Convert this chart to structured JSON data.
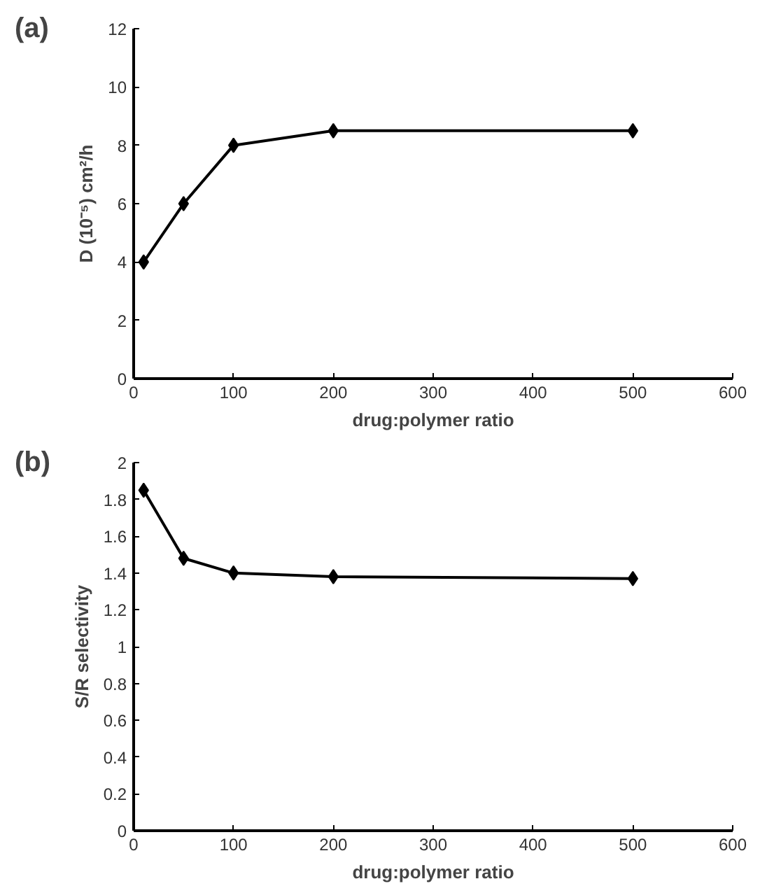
{
  "chart_data": [
    {
      "type": "line",
      "annotations": [
        "(a)"
      ],
      "xlabel": "drug:polymer ratio",
      "ylabel": "D (10⁻⁵) cm²/h",
      "x": [
        10,
        50,
        100,
        200,
        500
      ],
      "series": [
        {
          "color": "#000000",
          "values": [
            4,
            6,
            8,
            8.5,
            8.5
          ]
        }
      ],
      "xlim": [
        0,
        600
      ],
      "xticks": [
        0,
        100,
        200,
        300,
        400,
        500,
        600
      ],
      "ylim": [
        0,
        12
      ],
      "yticks": [
        0,
        2,
        4,
        6,
        8,
        10,
        12
      ],
      "grid": false,
      "marker": "diamond",
      "line_style": "solid"
    },
    {
      "type": "line",
      "annotations": [
        "(b)"
      ],
      "xlabel": "drug:polymer ratio",
      "ylabel": "S/R selectivity",
      "x": [
        10,
        50,
        100,
        200,
        500
      ],
      "series": [
        {
          "color": "#000000",
          "values": [
            1.85,
            1.48,
            1.4,
            1.38,
            1.37
          ]
        }
      ],
      "xlim": [
        0,
        600
      ],
      "xticks": [
        0,
        100,
        200,
        300,
        400,
        500,
        600
      ],
      "ylim": [
        0,
        2
      ],
      "yticks": [
        0,
        0.2,
        0.4,
        0.6,
        0.8,
        1,
        1.2,
        1.4,
        1.6,
        1.8,
        2
      ],
      "grid": false,
      "marker": "diamond",
      "line_style": "solid"
    }
  ]
}
